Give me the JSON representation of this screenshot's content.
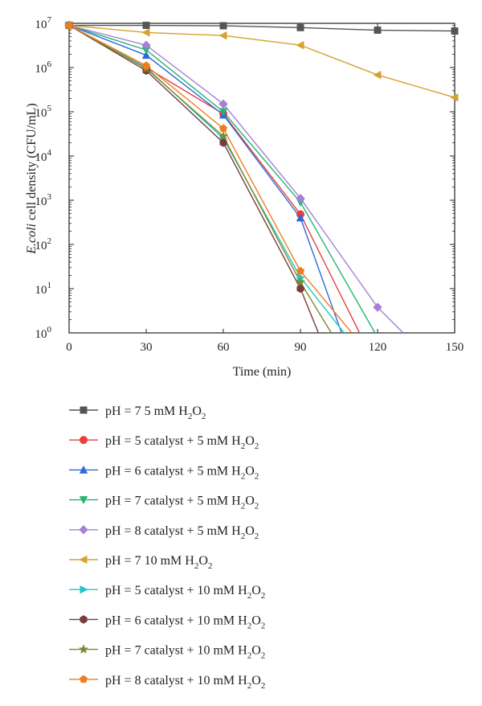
{
  "chart_data": {
    "type": "line",
    "xlabel": "Time (min)",
    "ylabel_italic": "E.coli",
    "ylabel_rest": " cell density (CFU/mL)",
    "x_ticks": [
      "0",
      "30",
      "60",
      "90",
      "120",
      "150"
    ],
    "y_tick_exponents": [
      "0",
      "1",
      "2",
      "3",
      "4",
      "5",
      "6",
      "7"
    ],
    "xlim": [
      0,
      150
    ],
    "ylim": [
      1,
      10000000
    ],
    "y_scale": "log",
    "legend_position": "below",
    "series": [
      {
        "name": "pH = 7 5 mM H2O2",
        "label_main": "pH = 7 5 mM H",
        "color": "#555555",
        "marker": "square",
        "x": [
          0,
          30,
          60,
          90,
          120,
          150
        ],
        "y": [
          9000000,
          9000000,
          8800000,
          8000000,
          7000000,
          6700000
        ]
      },
      {
        "name": "pH = 5 catalyst + 5 mM H2O2",
        "label_main": "pH = 5 catalyst + 5 mM H",
        "color": "#e8413b",
        "marker": "circle",
        "x": [
          0,
          30,
          60,
          90,
          113
        ],
        "y": [
          9000000,
          1000000,
          90000,
          480,
          1
        ]
      },
      {
        "name": "pH = 6 catalyst + 5 mM H2O2",
        "label_main": "pH = 6 catalyst + 5 mM H",
        "color": "#2e6ad8",
        "marker": "triangle-up",
        "x": [
          0,
          30,
          60,
          90,
          106
        ],
        "y": [
          9000000,
          1900000,
          85000,
          400,
          1
        ]
      },
      {
        "name": "pH = 7 catalyst + 5 mM H2O2",
        "label_main": "pH = 7 catalyst + 5 mM H",
        "color": "#22b573",
        "marker": "triangle-down",
        "x": [
          0,
          30,
          60,
          90,
          119
        ],
        "y": [
          9000000,
          2500000,
          100000,
          900,
          1
        ]
      },
      {
        "name": "pH = 8 catalyst + 5 mM H2O2",
        "label_main": "pH = 8 catalyst + 5 mM H",
        "color": "#a77fd6",
        "marker": "diamond",
        "x": [
          0,
          30,
          60,
          90,
          120,
          130
        ],
        "y": [
          9000000,
          3200000,
          150000,
          1100,
          3.8,
          1
        ]
      },
      {
        "name": "pH = 7 10 mM H2O2",
        "label_main": "pH = 7 10 mM H",
        "color": "#d4a22d",
        "marker": "triangle-left",
        "x": [
          0,
          30,
          60,
          90,
          120,
          150
        ],
        "y": [
          9000000,
          6200000,
          5300000,
          3200000,
          680000,
          210000
        ]
      },
      {
        "name": "pH = 5 catalyst + 10 mM H2O2",
        "label_main": "pH = 5 catalyst + 10 mM H",
        "color": "#1ec7c9",
        "marker": "triangle-right",
        "x": [
          0,
          30,
          60,
          90,
          107
        ],
        "y": [
          9000000,
          1000000,
          25000,
          18,
          1
        ]
      },
      {
        "name": "pH = 6 catalyst + 10 mM H2O2",
        "label_main": "pH = 6 catalyst + 10 mM H",
        "color": "#7a3b3b",
        "marker": "hexagon",
        "x": [
          0,
          30,
          60,
          90,
          97
        ],
        "y": [
          9000000,
          850000,
          20000,
          10,
          1
        ]
      },
      {
        "name": "pH = 7 catalyst + 10 mM H2O2",
        "label_main": "pH = 7 catalyst + 10 mM H",
        "color": "#7d8a2e",
        "marker": "star",
        "x": [
          0,
          30,
          60,
          90,
          102
        ],
        "y": [
          9000000,
          950000,
          28000,
          14,
          1
        ]
      },
      {
        "name": "pH = 8 catalyst + 10 mM H2O2",
        "label_main": "pH = 8 catalyst + 10 mM H",
        "color": "#f07c20",
        "marker": "pentagon",
        "x": [
          0,
          30,
          60,
          90,
          110
        ],
        "y": [
          9000000,
          1100000,
          42000,
          25,
          1
        ]
      }
    ],
    "legend_sub1": "2",
    "legend_o": "O",
    "legend_sub2": "2"
  }
}
